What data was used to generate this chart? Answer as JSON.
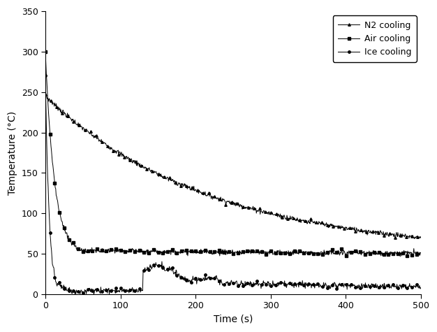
{
  "title": "",
  "xlabel": "Time (s)",
  "ylabel": "Temperature (°C)",
  "xlim": [
    0,
    500
  ],
  "ylim": [
    0,
    350
  ],
  "yticks": [
    0,
    50,
    100,
    150,
    200,
    250,
    300,
    350
  ],
  "xticks": [
    0,
    100,
    200,
    300,
    400,
    500
  ],
  "legend": [
    "N2 cooling",
    "Air cooling",
    "Ice cooling"
  ],
  "line_color": "#000000",
  "background_color": "#ffffff"
}
